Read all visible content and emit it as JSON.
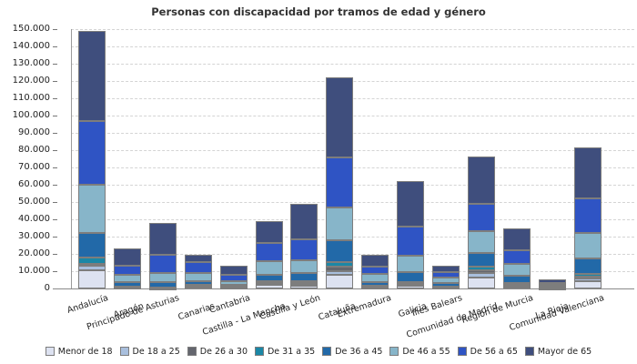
{
  "chart_data": {
    "type": "bar",
    "stacked": true,
    "title": "Personas con discapacidad por tramos de edad y género",
    "xlabel": "",
    "ylabel": "",
    "ylim": [
      0,
      150000
    ],
    "ytick_step": 10000,
    "grid": "horizontal-dashed",
    "legend_position": "bottom",
    "categories": [
      "Andalucía",
      "Aragón",
      "Principado de Asturias",
      "Canarias",
      "Cantabria",
      "Castilla - La Mancha",
      "Castilla y León",
      "Cataluña",
      "Extremadura",
      "Galicia",
      "Illes Balears",
      "Comunidad de Madrid",
      "Región de Murcia",
      "La Rioja",
      "Comunidad Valenciana"
    ],
    "series": [
      {
        "name": "Menor de 18",
        "color": "#dde2f1",
        "values": [
          10500,
          400,
          200,
          1000,
          300,
          1900,
          1600,
          8100,
          600,
          1600,
          400,
          6300,
          1600,
          250,
          4200
        ]
      },
      {
        "name": "De 18 a 25",
        "color": "#a9bfdd",
        "values": [
          2600,
          250,
          100,
          400,
          200,
          800,
          900,
          2100,
          350,
          600,
          250,
          2800,
          200,
          150,
          1600
        ]
      },
      {
        "name": "De 26 a 30",
        "color": "#64666e",
        "values": [
          1200,
          150,
          100,
          150,
          100,
          400,
          400,
          2200,
          150,
          300,
          100,
          1200,
          100,
          100,
          1000
        ]
      },
      {
        "name": "De 31 a 35",
        "color": "#1b87a6",
        "values": [
          3700,
          300,
          300,
          350,
          300,
          1200,
          1100,
          3000,
          500,
          1200,
          350,
          2100,
          1400,
          200,
          1800
        ]
      },
      {
        "name": "De 36 a 45",
        "color": "#2269a8",
        "values": [
          14000,
          2600,
          3000,
          2300,
          1000,
          3800,
          4800,
          12300,
          2100,
          5600,
          2100,
          7900,
          4200,
          600,
          8600
        ]
      },
      {
        "name": "De 46 a 55",
        "color": "#87b5c9",
        "values": [
          28000,
          4400,
          5500,
          4700,
          2100,
          7600,
          7500,
          19000,
          4700,
          9600,
          3100,
          12800,
          6700,
          900,
          14900
        ]
      },
      {
        "name": "De 56 a 65",
        "color": "#2f54c4",
        "values": [
          37000,
          4900,
          10200,
          6200,
          3700,
          10500,
          12000,
          29200,
          4400,
          16900,
          3000,
          15700,
          7900,
          1200,
          19800
        ]
      },
      {
        "name": "Mayor de 65",
        "color": "#3f4e7d",
        "values": [
          52000,
          10300,
          18400,
          4500,
          5300,
          12600,
          20500,
          46200,
          6700,
          26300,
          4000,
          27300,
          12600,
          2000,
          29800
        ]
      }
    ]
  },
  "axis": {
    "zero_label": "0",
    "tick_color": "#777777",
    "grid_color": "#d4d4d4",
    "label_color": "#222222"
  }
}
